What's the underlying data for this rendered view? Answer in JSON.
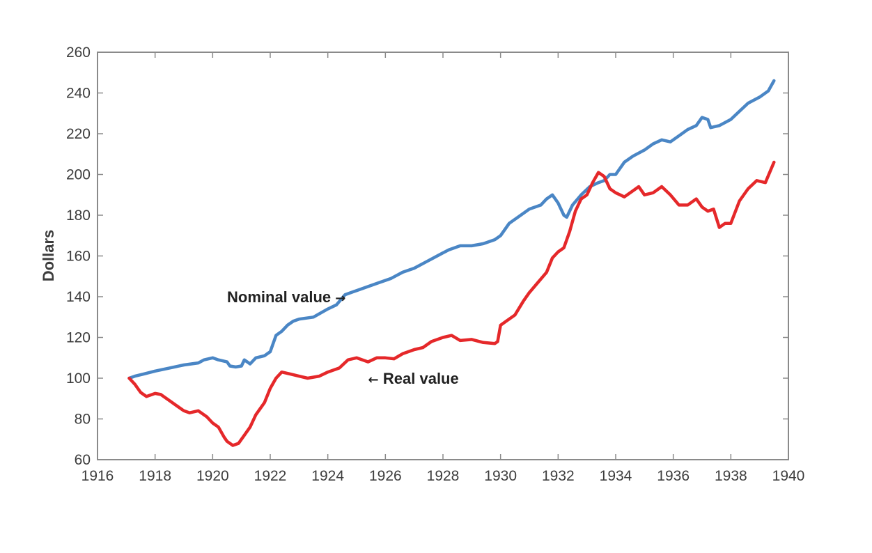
{
  "chart_data": {
    "type": "line",
    "title": "",
    "xlabel": "",
    "ylabel": "Dollars",
    "xlim": [
      1916,
      1940
    ],
    "ylim": [
      60,
      260
    ],
    "xticks": [
      1916,
      1918,
      1920,
      1922,
      1924,
      1926,
      1928,
      1930,
      1932,
      1934,
      1936,
      1938,
      1940
    ],
    "yticks": [
      60,
      80,
      100,
      120,
      140,
      160,
      180,
      200,
      220,
      240,
      260
    ],
    "grid": false,
    "series": [
      {
        "name": "Nominal value",
        "color": "#4a86c5",
        "points": [
          [
            1917.1,
            100
          ],
          [
            1917.3,
            101
          ],
          [
            1917.6,
            102
          ],
          [
            1918.0,
            103.5
          ],
          [
            1918.5,
            105
          ],
          [
            1919.0,
            106.5
          ],
          [
            1919.5,
            107.5
          ],
          [
            1919.7,
            109
          ],
          [
            1920.0,
            110
          ],
          [
            1920.2,
            109
          ],
          [
            1920.5,
            108
          ],
          [
            1920.6,
            106
          ],
          [
            1920.8,
            105.5
          ],
          [
            1921.0,
            106
          ],
          [
            1921.1,
            109
          ],
          [
            1921.3,
            107
          ],
          [
            1921.5,
            110
          ],
          [
            1921.8,
            111
          ],
          [
            1922.0,
            113
          ],
          [
            1922.2,
            121
          ],
          [
            1922.4,
            123
          ],
          [
            1922.6,
            126
          ],
          [
            1922.8,
            128
          ],
          [
            1923.0,
            129
          ],
          [
            1923.5,
            130
          ],
          [
            1924.0,
            134
          ],
          [
            1924.3,
            136
          ],
          [
            1924.6,
            141
          ],
          [
            1925.0,
            143
          ],
          [
            1925.4,
            145
          ],
          [
            1925.8,
            147
          ],
          [
            1926.2,
            149
          ],
          [
            1926.6,
            152
          ],
          [
            1927.0,
            154
          ],
          [
            1927.4,
            157
          ],
          [
            1927.8,
            160
          ],
          [
            1928.2,
            163
          ],
          [
            1928.6,
            165
          ],
          [
            1929.0,
            165
          ],
          [
            1929.4,
            166
          ],
          [
            1929.8,
            168
          ],
          [
            1930.0,
            170
          ],
          [
            1930.3,
            176
          ],
          [
            1930.6,
            179
          ],
          [
            1931.0,
            183
          ],
          [
            1931.4,
            185
          ],
          [
            1931.6,
            188
          ],
          [
            1931.8,
            190
          ],
          [
            1932.0,
            186
          ],
          [
            1932.2,
            180
          ],
          [
            1932.3,
            179
          ],
          [
            1932.5,
            185
          ],
          [
            1932.8,
            190
          ],
          [
            1933.1,
            194
          ],
          [
            1933.4,
            196
          ],
          [
            1933.6,
            197
          ],
          [
            1933.8,
            200
          ],
          [
            1934.0,
            200
          ],
          [
            1934.3,
            206
          ],
          [
            1934.6,
            209
          ],
          [
            1935.0,
            212
          ],
          [
            1935.3,
            215
          ],
          [
            1935.6,
            217
          ],
          [
            1935.9,
            216
          ],
          [
            1936.2,
            219
          ],
          [
            1936.5,
            222
          ],
          [
            1936.8,
            224
          ],
          [
            1937.0,
            228
          ],
          [
            1937.2,
            227
          ],
          [
            1937.3,
            223
          ],
          [
            1937.6,
            224
          ],
          [
            1938.0,
            227
          ],
          [
            1938.3,
            231
          ],
          [
            1938.6,
            235
          ],
          [
            1939.0,
            238
          ],
          [
            1939.3,
            241
          ],
          [
            1939.5,
            246
          ]
        ]
      },
      {
        "name": "Real value",
        "color": "#e5282a",
        "points": [
          [
            1917.1,
            100
          ],
          [
            1917.3,
            97
          ],
          [
            1917.5,
            93
          ],
          [
            1917.7,
            91
          ],
          [
            1918.0,
            92.5
          ],
          [
            1918.2,
            92
          ],
          [
            1918.5,
            89
          ],
          [
            1918.8,
            86
          ],
          [
            1919.0,
            84
          ],
          [
            1919.2,
            83
          ],
          [
            1919.5,
            84
          ],
          [
            1919.8,
            81
          ],
          [
            1920.0,
            78
          ],
          [
            1920.2,
            76
          ],
          [
            1920.4,
            71
          ],
          [
            1920.5,
            69
          ],
          [
            1920.7,
            67
          ],
          [
            1920.9,
            68
          ],
          [
            1921.1,
            72
          ],
          [
            1921.3,
            76
          ],
          [
            1921.5,
            82
          ],
          [
            1921.8,
            88
          ],
          [
            1922.0,
            95
          ],
          [
            1922.2,
            100
          ],
          [
            1922.4,
            103
          ],
          [
            1922.7,
            102
          ],
          [
            1923.0,
            101
          ],
          [
            1923.3,
            100
          ],
          [
            1923.7,
            101
          ],
          [
            1924.0,
            103
          ],
          [
            1924.4,
            105
          ],
          [
            1924.7,
            109
          ],
          [
            1925.0,
            110
          ],
          [
            1925.4,
            108
          ],
          [
            1925.7,
            110
          ],
          [
            1926.0,
            110
          ],
          [
            1926.3,
            109.5
          ],
          [
            1926.6,
            112
          ],
          [
            1927.0,
            114
          ],
          [
            1927.3,
            115
          ],
          [
            1927.6,
            118
          ],
          [
            1928.0,
            120
          ],
          [
            1928.3,
            121
          ],
          [
            1928.6,
            118.5
          ],
          [
            1929.0,
            119
          ],
          [
            1929.4,
            117.5
          ],
          [
            1929.8,
            117
          ],
          [
            1929.9,
            118
          ],
          [
            1930.0,
            126
          ],
          [
            1930.2,
            128
          ],
          [
            1930.5,
            131
          ],
          [
            1930.8,
            138
          ],
          [
            1931.0,
            142
          ],
          [
            1931.3,
            147
          ],
          [
            1931.6,
            152
          ],
          [
            1931.8,
            159
          ],
          [
            1932.0,
            162
          ],
          [
            1932.2,
            164
          ],
          [
            1932.4,
            172
          ],
          [
            1932.6,
            182
          ],
          [
            1932.8,
            188
          ],
          [
            1933.0,
            190
          ],
          [
            1933.2,
            196
          ],
          [
            1933.4,
            201
          ],
          [
            1933.6,
            199
          ],
          [
            1933.8,
            193
          ],
          [
            1934.0,
            191
          ],
          [
            1934.3,
            189
          ],
          [
            1934.6,
            192
          ],
          [
            1934.8,
            194
          ],
          [
            1935.0,
            190
          ],
          [
            1935.3,
            191
          ],
          [
            1935.6,
            194
          ],
          [
            1935.9,
            190
          ],
          [
            1936.2,
            185
          ],
          [
            1936.5,
            185
          ],
          [
            1936.8,
            188
          ],
          [
            1937.0,
            184
          ],
          [
            1937.2,
            182
          ],
          [
            1937.4,
            183
          ],
          [
            1937.6,
            174
          ],
          [
            1937.8,
            176
          ],
          [
            1938.0,
            176
          ],
          [
            1938.3,
            187
          ],
          [
            1938.6,
            193
          ],
          [
            1938.9,
            197
          ],
          [
            1939.2,
            196
          ],
          [
            1939.5,
            206
          ]
        ]
      }
    ],
    "annotations": [
      {
        "text": "Nominal value",
        "arrow": "→",
        "x": 1920.5,
        "y": 140
      },
      {
        "text": "Real value",
        "arrow": "←",
        "x": 1925.4,
        "y": 100
      }
    ]
  }
}
